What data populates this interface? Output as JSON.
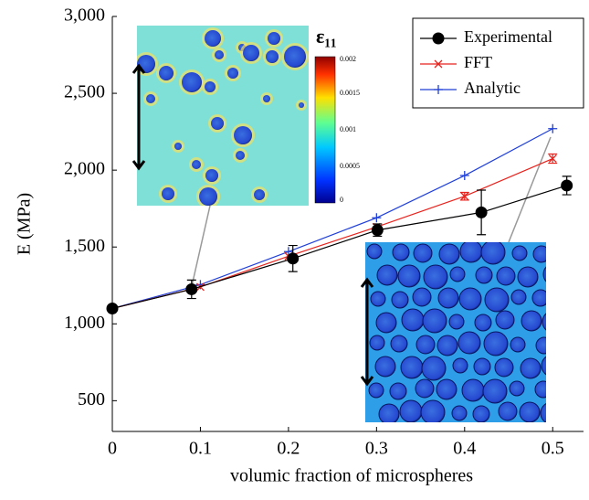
{
  "chart_data": {
    "type": "line",
    "xlabel": "volumic fraction of microspheres",
    "ylabel": "E (MPa)",
    "xlim": [
      0,
      0.535
    ],
    "ylim": [
      300,
      3000
    ],
    "xticks": [
      0,
      0.1,
      0.2,
      0.3,
      0.4,
      0.5
    ],
    "yticks": [
      500,
      {
        "value": 1000,
        "label": "1,000"
      },
      {
        "value": 1500,
        "label": "1,500"
      },
      {
        "value": 2000,
        "label": "2,000"
      },
      {
        "value": 2500,
        "label": "2,500"
      },
      {
        "value": 3000,
        "label": "3,000"
      }
    ],
    "legend": "top-right",
    "series": [
      {
        "name": "Experimental",
        "color": "#000000",
        "marker": "circle",
        "x": [
          0,
          0.09,
          0.205,
          0.301,
          0.419,
          0.516
        ],
        "values": [
          1100,
          1225,
          1425,
          1610,
          1725,
          1900
        ],
        "errors": [
          null,
          60,
          85,
          40,
          145,
          60
        ]
      },
      {
        "name": "FFT",
        "color": "#e8221c",
        "marker": "x",
        "x": [
          0,
          0.1,
          0.2,
          0.3,
          0.4,
          0.5
        ],
        "values": [
          1100,
          1240,
          1440,
          1630,
          1830,
          2075
        ],
        "errors": [
          null,
          null,
          null,
          null,
          25,
          30
        ]
      },
      {
        "name": "Analytic",
        "color": "#1f3fd8",
        "marker": "plus",
        "x": [
          0,
          0.1,
          0.2,
          0.3,
          0.4,
          0.5
        ],
        "values": [
          1100,
          1255,
          1470,
          1690,
          1965,
          2270
        ]
      }
    ],
    "colorbar": {
      "title": "ε₁₁",
      "ticks": [
        0.002,
        0.0015,
        0.001,
        0.0005,
        0
      ]
    }
  }
}
